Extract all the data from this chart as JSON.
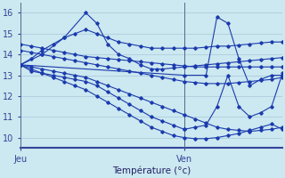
{
  "xlabel": "Température (°c)",
  "bg_color": "#cce8f0",
  "line_color": "#1a3aad",
  "grid_color": "#a8c8d8",
  "xlim": [
    0,
    48
  ],
  "ylim": [
    9.5,
    16.5
  ],
  "yticks": [
    10,
    11,
    12,
    13,
    14,
    15,
    16
  ],
  "xtick_labels": [
    "Jeu",
    "Ven"
  ],
  "xtick_positions": [
    0,
    30
  ],
  "vline_x": [
    0,
    30
  ],
  "series": [
    {
      "x": [
        0,
        2,
        4,
        6,
        8,
        10,
        12,
        14,
        16,
        18,
        20,
        22,
        24,
        26,
        28,
        30,
        32,
        34,
        36,
        38,
        40,
        42,
        44,
        46,
        48
      ],
      "y": [
        14.5,
        14.4,
        14.3,
        14.2,
        14.1,
        14.0,
        13.9,
        13.85,
        13.8,
        13.75,
        13.7,
        13.65,
        13.6,
        13.55,
        13.5,
        13.45,
        13.4,
        13.4,
        13.4,
        13.4,
        13.4,
        13.4,
        13.4,
        13.4,
        13.4
      ]
    },
    {
      "x": [
        0,
        2,
        4,
        6,
        8,
        10,
        12,
        14,
        16,
        18,
        20,
        22,
        24,
        26,
        28,
        30,
        32,
        34,
        36,
        38,
        40,
        42,
        44,
        46,
        48
      ],
      "y": [
        14.2,
        14.1,
        14.0,
        13.9,
        13.8,
        13.7,
        13.6,
        13.5,
        13.4,
        13.3,
        13.2,
        13.1,
        13.0,
        12.9,
        12.8,
        12.7,
        12.65,
        12.6,
        12.6,
        12.6,
        12.65,
        12.7,
        12.75,
        12.8,
        12.9
      ]
    },
    {
      "x": [
        0,
        2,
        4,
        6,
        8,
        10,
        12,
        14,
        16,
        18,
        20,
        22,
        24,
        26,
        28,
        30,
        32,
        34,
        36,
        38,
        40,
        42,
        44,
        46,
        48
      ],
      "y": [
        13.5,
        13.4,
        13.3,
        13.2,
        13.1,
        13.0,
        12.9,
        12.7,
        12.5,
        12.3,
        12.1,
        11.9,
        11.7,
        11.5,
        11.3,
        11.1,
        10.9,
        10.7,
        10.5,
        10.4,
        10.35,
        10.3,
        10.35,
        10.4,
        10.5
      ]
    },
    {
      "x": [
        0,
        2,
        4,
        6,
        8,
        10,
        12,
        14,
        16,
        18,
        20,
        22,
        24,
        26,
        28,
        30,
        32,
        34,
        36,
        38,
        40,
        42,
        44,
        46,
        48
      ],
      "y": [
        13.5,
        13.3,
        13.1,
        12.9,
        12.7,
        12.5,
        12.3,
        12.0,
        11.7,
        11.4,
        11.1,
        10.8,
        10.5,
        10.3,
        10.1,
        10.0,
        9.95,
        9.95,
        10.0,
        10.1,
        10.2,
        10.35,
        10.5,
        10.65,
        10.4
      ]
    },
    {
      "x": [
        0,
        2,
        4,
        6,
        8,
        10,
        12,
        14,
        16,
        18,
        20,
        22,
        24,
        26,
        28,
        30
      ],
      "y": [
        13.5,
        13.2,
        13.1,
        13.0,
        12.9,
        12.8,
        12.7,
        12.5,
        12.2,
        11.9,
        11.6,
        11.3,
        11.0,
        10.8,
        10.6,
        10.4
      ]
    },
    {
      "x": [
        0,
        4,
        8,
        12,
        14,
        16,
        18,
        20,
        22,
        24,
        25,
        26,
        28,
        30,
        32,
        34,
        36,
        38,
        40,
        42,
        44,
        46,
        48
      ],
      "y": [
        13.5,
        14.0,
        14.8,
        16.0,
        15.5,
        14.5,
        14.0,
        13.8,
        13.5,
        13.3,
        13.3,
        13.3,
        13.35,
        13.4,
        13.45,
        13.5,
        13.55,
        13.6,
        13.65,
        13.7,
        13.75,
        13.8,
        13.85
      ]
    },
    {
      "x": [
        0,
        2,
        4,
        6,
        8,
        10,
        12,
        14,
        16,
        18,
        20,
        22,
        24,
        26,
        28,
        30,
        32,
        34,
        36,
        38,
        40,
        42,
        44,
        46,
        48
      ],
      "y": [
        13.5,
        13.8,
        14.2,
        14.5,
        14.8,
        15.0,
        15.2,
        15.0,
        14.8,
        14.6,
        14.5,
        14.4,
        14.3,
        14.3,
        14.3,
        14.3,
        14.3,
        14.35,
        14.4,
        14.4,
        14.45,
        14.5,
        14.55,
        14.6,
        14.6
      ]
    },
    {
      "x": [
        0,
        30,
        34,
        36,
        38,
        40,
        42,
        44,
        46,
        48
      ],
      "y": [
        13.5,
        13.0,
        13.0,
        15.8,
        15.5,
        13.8,
        12.5,
        12.8,
        13.0,
        13.0
      ]
    },
    {
      "x": [
        30,
        32,
        34,
        36,
        38,
        40,
        42,
        44,
        46,
        48
      ],
      "y": [
        10.4,
        10.5,
        10.6,
        11.5,
        13.0,
        11.5,
        11.0,
        11.2,
        11.5,
        13.1
      ]
    }
  ]
}
